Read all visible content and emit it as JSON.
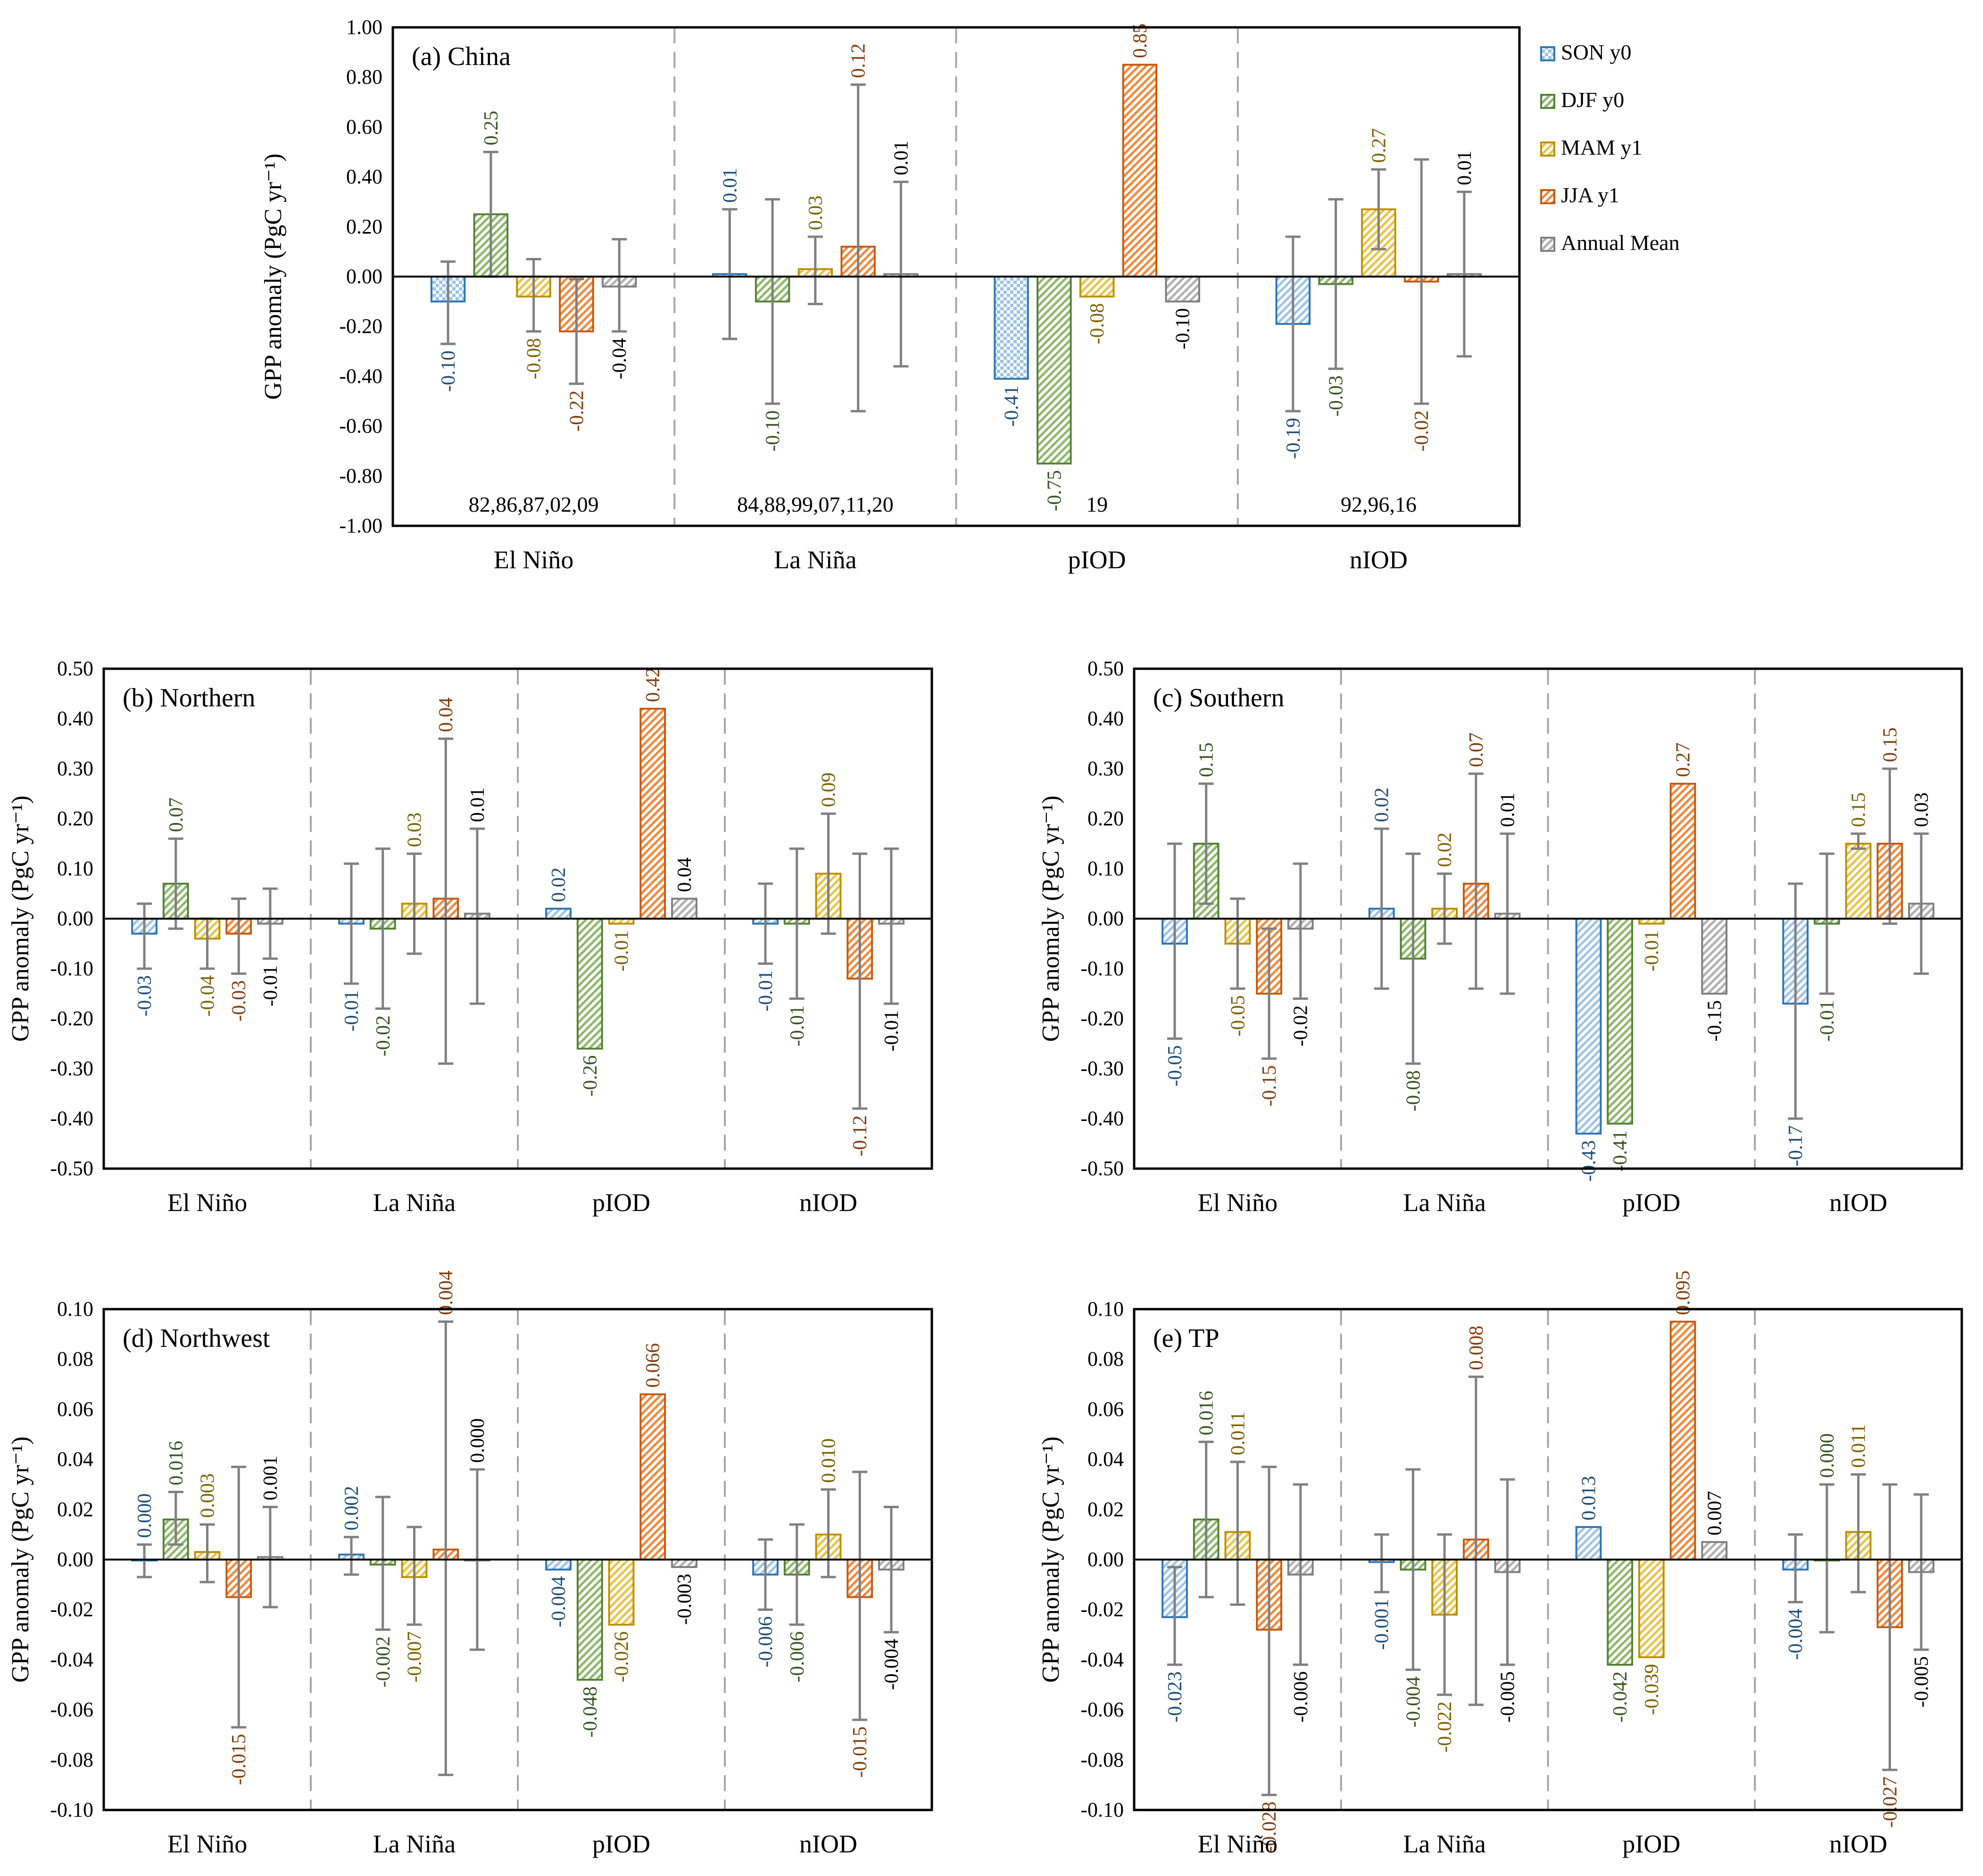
{
  "chart_data": {
    "type": "bar",
    "ylabel": "GPP anomaly (PgC yr⁻¹)",
    "categories": [
      "El Niño",
      "La Niña",
      "pIOD",
      "nIOD"
    ],
    "legend": {
      "placement": "right of panel (a)",
      "entries": [
        {
          "name": "SON y0",
          "color": "#2E75B6",
          "text_color": "#1F4E79",
          "pattern": "checker"
        },
        {
          "name": "DJF y0",
          "color": "#548235",
          "text_color": "#375623",
          "pattern": "diagonal"
        },
        {
          "name": "MAM y1",
          "color": "#BF9000",
          "text_color": "#7F6000",
          "pattern": "diagonal"
        },
        {
          "name": "JJA y1",
          "color": "#C55A11",
          "text_color": "#843C0C",
          "pattern": "diagonal"
        },
        {
          "name": "Annual Mean",
          "color": "#7F7F7F",
          "text_color": "#000000",
          "pattern": "diagonal"
        }
      ]
    },
    "panels": [
      {
        "title": "(a) China",
        "ylim": [
          -1.0,
          1.0
        ],
        "yticks": [
          "1.00",
          "0.80",
          "0.60",
          "0.40",
          "0.20",
          "0.00",
          "-0.20",
          "-0.40",
          "-0.60",
          "-0.80",
          "-1.00"
        ],
        "ytick_values": [
          1.0,
          0.8,
          0.6,
          0.4,
          0.2,
          0.0,
          -0.2,
          -0.4,
          -0.6,
          -0.8,
          -1.0
        ],
        "event_years": [
          "82,86,87,02,09",
          "84,88,99,07,11,20",
          "19",
          "92,96,16"
        ],
        "groups": [
          {
            "category": "El Niño",
            "values": [
              -0.1,
              0.25,
              -0.08,
              -0.22,
              -0.04
            ],
            "labels": [
              "-0.10",
              "0.25",
              "-0.08",
              "-0.22",
              "-0.04"
            ],
            "errors": [
              [
                -0.27,
                0.06
              ],
              [
                0.0,
                0.5
              ],
              [
                -0.22,
                0.07
              ],
              [
                -0.43,
                -0.01
              ],
              [
                -0.22,
                0.15
              ]
            ]
          },
          {
            "category": "La Niña",
            "values": [
              0.01,
              -0.1,
              0.03,
              0.12,
              0.01
            ],
            "labels": [
              "0.01",
              "-0.10",
              "0.03",
              "0.12",
              "0.01"
            ],
            "errors": [
              [
                -0.25,
                0.27
              ],
              [
                -0.51,
                0.31
              ],
              [
                -0.11,
                0.16
              ],
              [
                -0.54,
                0.77
              ],
              [
                -0.36,
                0.38
              ]
            ]
          },
          {
            "category": "pIOD",
            "values": [
              -0.41,
              -0.75,
              -0.08,
              0.85,
              -0.1
            ],
            "labels": [
              "-0.41",
              "-0.75",
              "-0.08",
              "0.85",
              "-0.10"
            ],
            "errors": null
          },
          {
            "category": "nIOD",
            "values": [
              -0.19,
              -0.03,
              0.27,
              -0.02,
              0.01
            ],
            "labels": [
              "-0.19",
              "-0.03",
              "0.27",
              "-0.02",
              "0.01"
            ],
            "errors": [
              [
                -0.54,
                0.16
              ],
              [
                -0.37,
                0.31
              ],
              [
                0.11,
                0.43
              ],
              [
                -0.51,
                0.47
              ],
              [
                -0.32,
                0.34
              ]
            ]
          }
        ]
      },
      {
        "title": "(b) Northern",
        "ylim": [
          -0.5,
          0.5
        ],
        "yticks": [
          "0.50",
          "0.40",
          "0.30",
          "0.20",
          "0.10",
          "0.00",
          "-0.10",
          "-0.20",
          "-0.30",
          "-0.40",
          "-0.50"
        ],
        "ytick_values": [
          0.5,
          0.4,
          0.3,
          0.2,
          0.1,
          0.0,
          -0.1,
          -0.2,
          -0.3,
          -0.4,
          -0.5
        ],
        "groups": [
          {
            "category": "El Niño",
            "values": [
              -0.03,
              0.07,
              -0.04,
              -0.03,
              -0.01
            ],
            "labels": [
              "-0.03",
              "0.07",
              "-0.04",
              "-0.03",
              "-0.01"
            ],
            "errors": [
              [
                -0.1,
                0.03
              ],
              [
                -0.02,
                0.16
              ],
              [
                -0.1,
                0.0
              ],
              [
                -0.11,
                0.04
              ],
              [
                -0.08,
                0.06
              ]
            ]
          },
          {
            "category": "La Niña",
            "values": [
              -0.01,
              -0.02,
              0.03,
              0.04,
              0.01
            ],
            "labels": [
              "-0.01",
              "-0.02",
              "0.03",
              "0.04",
              "0.01"
            ],
            "errors": [
              [
                -0.13,
                0.11
              ],
              [
                -0.18,
                0.14
              ],
              [
                -0.07,
                0.13
              ],
              [
                -0.29,
                0.36
              ],
              [
                -0.17,
                0.18
              ]
            ]
          },
          {
            "category": "pIOD",
            "values": [
              0.02,
              -0.26,
              -0.01,
              0.42,
              0.04
            ],
            "labels": [
              "0.02",
              "-0.26",
              "-0.01",
              "0.42",
              "0.04"
            ],
            "errors": null
          },
          {
            "category": "nIOD",
            "values": [
              -0.01,
              -0.01,
              0.09,
              -0.12,
              -0.01
            ],
            "labels": [
              "-0.01",
              "-0.01",
              "0.09",
              "-0.12",
              "-0.01"
            ],
            "errors": [
              [
                -0.09,
                0.07
              ],
              [
                -0.16,
                0.14
              ],
              [
                -0.03,
                0.21
              ],
              [
                -0.38,
                0.13
              ],
              [
                -0.17,
                0.14
              ]
            ]
          }
        ]
      },
      {
        "title": "(c) Southern",
        "ylim": [
          -0.5,
          0.5
        ],
        "yticks": [
          "0.50",
          "0.40",
          "0.30",
          "0.20",
          "0.10",
          "0.00",
          "-0.10",
          "-0.20",
          "-0.30",
          "-0.40",
          "-0.50"
        ],
        "ytick_values": [
          0.5,
          0.4,
          0.3,
          0.2,
          0.1,
          0.0,
          -0.1,
          -0.2,
          -0.3,
          -0.4,
          -0.5
        ],
        "groups": [
          {
            "category": "El Niño",
            "values": [
              -0.05,
              0.15,
              -0.05,
              -0.15,
              -0.02
            ],
            "labels": [
              "-0.05",
              "0.15",
              "-0.05",
              "-0.15",
              "-0.02"
            ],
            "errors": [
              [
                -0.24,
                0.15
              ],
              [
                0.03,
                0.27
              ],
              [
                -0.14,
                0.04
              ],
              [
                -0.28,
                -0.02
              ],
              [
                -0.16,
                0.11
              ]
            ]
          },
          {
            "category": "La Niña",
            "values": [
              0.02,
              -0.08,
              0.02,
              0.07,
              0.01
            ],
            "labels": [
              "0.02",
              "-0.08",
              "0.02",
              "0.07",
              "0.01"
            ],
            "errors": [
              [
                -0.14,
                0.18
              ],
              [
                -0.29,
                0.13
              ],
              [
                -0.05,
                0.09
              ],
              [
                -0.14,
                0.29
              ],
              [
                -0.15,
                0.17
              ]
            ]
          },
          {
            "category": "pIOD",
            "values": [
              -0.43,
              -0.41,
              -0.01,
              0.27,
              -0.15
            ],
            "labels": [
              "-0.43",
              "-0.41",
              "-0.01",
              "0.27",
              "-0.15"
            ],
            "errors": null
          },
          {
            "category": "nIOD",
            "values": [
              -0.17,
              -0.01,
              0.15,
              0.15,
              0.03
            ],
            "labels": [
              "-0.17",
              "-0.01",
              "0.15",
              "0.15",
              "0.03"
            ],
            "errors": [
              [
                -0.4,
                0.07
              ],
              [
                -0.15,
                0.13
              ],
              [
                0.14,
                0.17
              ],
              [
                -0.01,
                0.3
              ],
              [
                -0.11,
                0.17
              ]
            ]
          }
        ]
      },
      {
        "title": "(d) Northwest",
        "ylim": [
          -0.1,
          0.1
        ],
        "yticks": [
          "0.10",
          "0.08",
          "0.06",
          "0.04",
          "0.02",
          "0.00",
          "-0.02",
          "-0.04",
          "-0.06",
          "-0.08",
          "-0.10"
        ],
        "ytick_values": [
          0.1,
          0.08,
          0.06,
          0.04,
          0.02,
          0.0,
          -0.02,
          -0.04,
          -0.06,
          -0.08,
          -0.1
        ],
        "groups": [
          {
            "category": "El Niño",
            "values": [
              0.0,
              0.016,
              0.003,
              -0.015,
              0.001
            ],
            "labels": [
              "0.000",
              "0.016",
              "0.003",
              "-0.015",
              "0.001"
            ],
            "errors": [
              [
                -0.007,
                0.006
              ],
              [
                0.006,
                0.027
              ],
              [
                -0.009,
                0.014
              ],
              [
                -0.067,
                0.037
              ],
              [
                -0.019,
                0.021
              ]
            ]
          },
          {
            "category": "La Niña",
            "values": [
              0.002,
              -0.002,
              -0.007,
              0.004,
              0.0
            ],
            "labels": [
              "0.002",
              "-0.002",
              "-0.007",
              "0.004",
              "0.000"
            ],
            "errors": [
              [
                -0.006,
                0.009
              ],
              [
                -0.028,
                0.025
              ],
              [
                -0.026,
                0.013
              ],
              [
                -0.086,
                0.095
              ],
              [
                -0.036,
                0.036
              ]
            ]
          },
          {
            "category": "pIOD",
            "values": [
              -0.004,
              -0.048,
              -0.026,
              0.066,
              -0.003
            ],
            "labels": [
              "-0.004",
              "-0.048",
              "-0.026",
              "0.066",
              "-0.003"
            ],
            "errors": null
          },
          {
            "category": "nIOD",
            "values": [
              -0.006,
              -0.006,
              0.01,
              -0.015,
              -0.004
            ],
            "labels": [
              "-0.006",
              "-0.006",
              "0.010",
              "-0.015",
              "-0.004"
            ],
            "errors": [
              [
                -0.02,
                0.008
              ],
              [
                -0.026,
                0.014
              ],
              [
                -0.007,
                0.028
              ],
              [
                -0.064,
                0.035
              ],
              [
                -0.029,
                0.021
              ]
            ]
          }
        ]
      },
      {
        "title": "(e) TP",
        "ylim": [
          -0.1,
          0.1
        ],
        "yticks": [
          "0.10",
          "0.08",
          "0.06",
          "0.04",
          "0.02",
          "0.00",
          "-0.02",
          "-0.04",
          "-0.06",
          "-0.08",
          "-0.10"
        ],
        "ytick_values": [
          0.1,
          0.08,
          0.06,
          0.04,
          0.02,
          0.0,
          -0.02,
          -0.04,
          -0.06,
          -0.08,
          -0.1
        ],
        "groups": [
          {
            "category": "El Niño",
            "values": [
              -0.023,
              0.016,
              0.011,
              -0.028,
              -0.006
            ],
            "labels": [
              "-0.023",
              "0.016",
              "0.011",
              "-0.028",
              "-0.006"
            ],
            "errors": [
              [
                -0.042,
                -0.003
              ],
              [
                -0.015,
                0.047
              ],
              [
                -0.018,
                0.039
              ],
              [
                -0.094,
                0.037
              ],
              [
                -0.042,
                0.03
              ]
            ]
          },
          {
            "category": "La Niña",
            "values": [
              -0.001,
              -0.004,
              -0.022,
              0.008,
              -0.005
            ],
            "labels": [
              "-0.001",
              "-0.004",
              "-0.022",
              "0.008",
              "-0.005"
            ],
            "errors": [
              [
                -0.013,
                0.01
              ],
              [
                -0.044,
                0.036
              ],
              [
                -0.054,
                0.01
              ],
              [
                -0.058,
                0.073
              ],
              [
                -0.042,
                0.032
              ]
            ]
          },
          {
            "category": "pIOD",
            "values": [
              0.013,
              -0.042,
              -0.039,
              0.095,
              0.007
            ],
            "labels": [
              "0.013",
              "-0.042",
              "-0.039",
              "0.095",
              "0.007"
            ],
            "errors": null
          },
          {
            "category": "nIOD",
            "values": [
              -0.004,
              0.0,
              0.011,
              -0.027,
              -0.005
            ],
            "labels": [
              "-0.004",
              "0.000",
              "0.011",
              "-0.027",
              "-0.005"
            ],
            "errors": [
              [
                -0.017,
                0.01
              ],
              [
                -0.029,
                0.03
              ],
              [
                -0.013,
                0.034
              ],
              [
                -0.084,
                0.03
              ],
              [
                -0.036,
                0.026
              ]
            ]
          }
        ]
      }
    ]
  }
}
